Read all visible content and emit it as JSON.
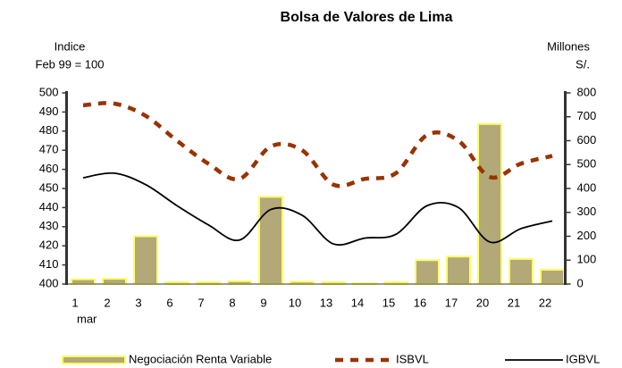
{
  "chart_data": {
    "type": "combo",
    "title": "Bolsa de Valores de Lima",
    "y_label_lines": [
      "Indice",
      "Feb 99 = 100"
    ],
    "y2_label_lines": [
      "Millones",
      "S/."
    ],
    "categories": [
      "1",
      "2",
      "3",
      "6",
      "7",
      "8",
      "9",
      "10",
      "13",
      "14",
      "15",
      "16",
      "17",
      "20",
      "21",
      "22"
    ],
    "annotations": [
      "mar"
    ],
    "ylim": [
      400,
      500
    ],
    "yticks": [
      400,
      410,
      420,
      430,
      440,
      450,
      460,
      470,
      480,
      490,
      500
    ],
    "y2lim": [
      0,
      800
    ],
    "y2ticks": [
      0,
      100,
      200,
      300,
      400,
      500,
      600,
      700,
      800
    ],
    "series": [
      {
        "name": "Negociación Renta Variable",
        "type": "bar",
        "axis": "y2",
        "color": "#b3a878",
        "edge_color": "#ffff66",
        "values": [
          20,
          22,
          200,
          8,
          8,
          12,
          365,
          10,
          8,
          3,
          8,
          100,
          115,
          670,
          105,
          60
        ]
      },
      {
        "name": "ISBVL",
        "type": "line",
        "style": "dashed",
        "color": "#993300",
        "values": [
          493.5,
          494.4,
          488,
          475,
          463,
          455,
          472,
          470,
          452,
          455,
          458,
          478,
          475,
          456,
          463,
          467
        ]
      },
      {
        "name": "IGBVL",
        "type": "line",
        "style": "solid",
        "color": "#000000",
        "values": [
          455.6,
          458,
          452,
          441,
          431,
          423,
          439,
          436,
          421,
          424,
          426,
          441,
          440,
          422,
          429,
          433
        ]
      }
    ]
  }
}
